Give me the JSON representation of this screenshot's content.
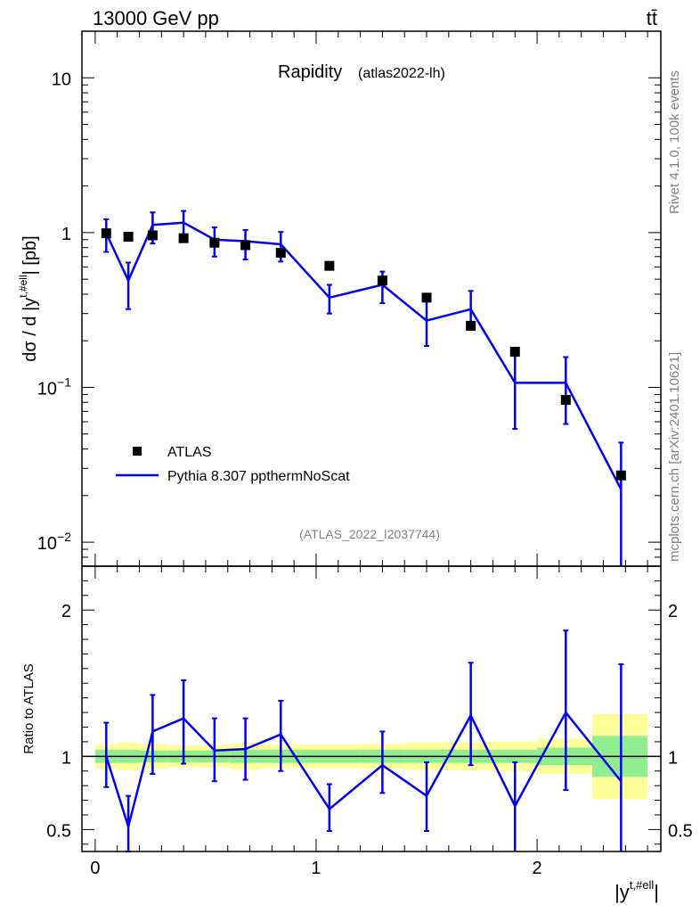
{
  "header": {
    "energy_label": "13000 GeV pp",
    "process_label": "tt̄"
  },
  "side_labels": {
    "rivet": "Rivet 4.1.0,  100k events",
    "mcplots": "mcplots.cern.ch [arXiv:2401.10621]"
  },
  "colors": {
    "mc_line": "#0000ee",
    "data_marker": "#000000",
    "band_inner": "#90ee90",
    "band_outer": "#ffff99"
  },
  "chart_data": [
    {
      "type": "line",
      "panel": "main",
      "title": "Rapidity",
      "subtitle": "(atlas2022-lh)",
      "watermark": "(ATLAS_2022_I2037744)",
      "ylabel": "dσ / d |y^{t,#ell}| [pb]",
      "yscale": "log",
      "ylim": [
        0.007,
        20
      ],
      "xlim": [
        -0.06,
        2.56
      ],
      "y_ticks": [
        {
          "value": 10,
          "label": "10"
        },
        {
          "value": 1,
          "label": "1"
        },
        {
          "value": 0.1,
          "label": "10",
          "exp": "−1"
        },
        {
          "value": 0.01,
          "label": "10",
          "exp": "−2"
        }
      ],
      "legend": {
        "position": "bottom-left",
        "data_label": "ATLAS",
        "mc_label": "Pythia 8.307 ppthermNoScat"
      },
      "data_points": {
        "name": "ATLAS",
        "x": [
          0.05,
          0.15,
          0.26,
          0.4,
          0.54,
          0.68,
          0.84,
          1.06,
          1.3,
          1.5,
          1.7,
          1.9,
          2.13,
          2.38
        ],
        "y": [
          0.99,
          0.94,
          0.96,
          0.92,
          0.86,
          0.83,
          0.74,
          0.61,
          0.49,
          0.38,
          0.25,
          0.17,
          0.083,
          0.027
        ]
      },
      "mc_series": {
        "name": "Pythia 8.307 ppthermNoScat",
        "x": [
          0.05,
          0.15,
          0.26,
          0.4,
          0.54,
          0.68,
          0.84,
          1.06,
          1.3,
          1.5,
          1.7,
          1.9,
          2.13,
          2.38
        ],
        "y": [
          0.99,
          0.49,
          1.12,
          1.16,
          0.9,
          0.88,
          0.84,
          0.38,
          0.46,
          0.27,
          0.32,
          0.107,
          0.107,
          0.022
        ],
        "err_lo": [
          0.75,
          0.32,
          0.85,
          0.87,
          0.7,
          0.67,
          0.65,
          0.3,
          0.35,
          0.185,
          0.25,
          0.054,
          0.058,
          0.0065
        ],
        "err_hi": [
          1.22,
          0.64,
          1.35,
          1.38,
          1.08,
          1.04,
          1.01,
          0.46,
          0.56,
          0.36,
          0.42,
          0.165,
          0.157,
          0.044
        ]
      }
    },
    {
      "type": "line",
      "panel": "ratio",
      "ylabel": "Ratio to ATLAS",
      "xlabel": "|y^{t,#ell}|",
      "ylim": [
        0.35,
        2.3
      ],
      "xlim": [
        -0.06,
        2.56
      ],
      "y_ticks": [
        {
          "value": 0.5,
          "label": "0.5"
        },
        {
          "value": 1,
          "label": "1"
        },
        {
          "value": 2,
          "label": "2"
        }
      ],
      "x_ticks": [
        {
          "value": 0,
          "label": "0"
        },
        {
          "value": 1,
          "label": "1"
        },
        {
          "value": 2,
          "label": "2"
        }
      ],
      "bin_edges": [
        0.0,
        0.1,
        0.2,
        0.33,
        0.47,
        0.61,
        0.75,
        0.93,
        1.2,
        1.4,
        1.6,
        1.8,
        2.0,
        2.25,
        2.5
      ],
      "band_inner": {
        "lo": [
          0.955,
          0.955,
          0.96,
          0.96,
          0.96,
          0.955,
          0.955,
          0.955,
          0.955,
          0.955,
          0.955,
          0.955,
          0.94,
          0.86
        ],
        "hi": [
          1.045,
          1.045,
          1.04,
          1.04,
          1.04,
          1.045,
          1.045,
          1.045,
          1.045,
          1.045,
          1.045,
          1.045,
          1.06,
          1.14
        ]
      },
      "band_outer": {
        "lo": [
          0.915,
          0.905,
          0.915,
          0.925,
          0.925,
          0.91,
          0.92,
          0.92,
          0.915,
          0.905,
          0.905,
          0.9,
          0.88,
          0.71
        ],
        "hi": [
          1.085,
          1.095,
          1.085,
          1.075,
          1.075,
          1.09,
          1.08,
          1.08,
          1.085,
          1.095,
          1.095,
          1.1,
          1.12,
          1.29
        ]
      },
      "ratio_series": {
        "name": "Pythia 8.307 ppthermNoScat",
        "x": [
          0.05,
          0.15,
          0.26,
          0.4,
          0.54,
          0.68,
          0.84,
          1.06,
          1.3,
          1.5,
          1.7,
          1.9,
          2.13,
          2.38
        ],
        "y": [
          1.0,
          0.52,
          1.17,
          1.26,
          1.04,
          1.05,
          1.15,
          0.64,
          0.94,
          0.73,
          1.28,
          0.66,
          1.3,
          0.83
        ],
        "err_lo": [
          0.79,
          0.35,
          0.88,
          0.95,
          0.83,
          0.84,
          0.9,
          0.49,
          0.75,
          0.49,
          0.94,
          0.33,
          0.77,
          0.2
        ],
        "err_hi": [
          1.23,
          0.73,
          1.42,
          1.52,
          1.26,
          1.26,
          1.38,
          0.81,
          1.17,
          0.96,
          1.64,
          0.96,
          1.86,
          1.63
        ]
      }
    }
  ]
}
